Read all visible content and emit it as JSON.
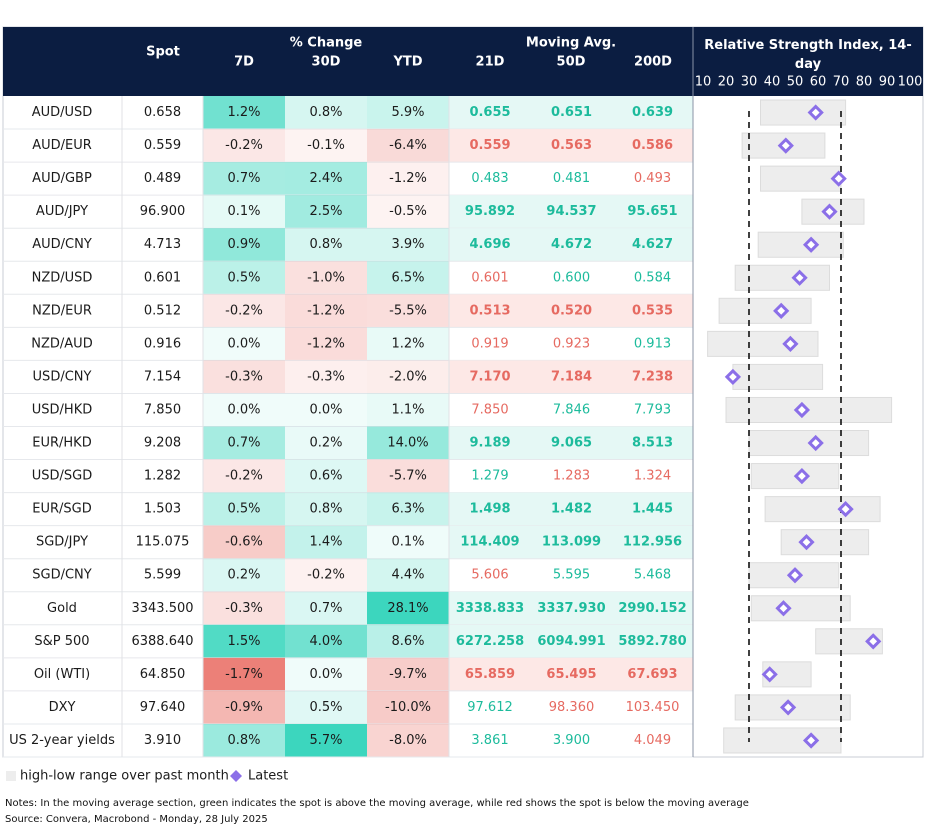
{
  "header": {
    "spot": "Spot",
    "pct_change": "% Change",
    "d7": "7D",
    "d30": "30D",
    "ytd": "YTD",
    "moving_avg": "Moving Avg.",
    "ma21": "21D",
    "ma50": "50D",
    "ma200": "200D",
    "rsi_title": "Relative Strength Index, 14-day"
  },
  "rsi": {
    "xlim": [
      10,
      100
    ],
    "xticks": [
      10,
      20,
      30,
      40,
      50,
      60,
      70,
      80,
      90,
      100
    ],
    "reference_lines": [
      30,
      70
    ],
    "range_color": "#ededed",
    "latest_color": "#8b6fe8"
  },
  "rows": [
    {
      "name": "AUD/USD",
      "spot": "0.658",
      "d7": "1.2%",
      "d30": "0.8%",
      "ytd": "5.9%",
      "ma21": "0.655",
      "ma50": "0.651",
      "ma200": "0.639",
      "rsi_low": 35,
      "rsi_high": 72,
      "rsi_latest": 59
    },
    {
      "name": "AUD/EUR",
      "spot": "0.559",
      "d7": "-0.2%",
      "d30": "-0.1%",
      "ytd": "-6.4%",
      "ma21": "0.559",
      "ma50": "0.563",
      "ma200": "0.586",
      "rsi_low": 27,
      "rsi_high": 63,
      "rsi_latest": 46
    },
    {
      "name": "AUD/GBP",
      "spot": "0.489",
      "d7": "0.7%",
      "d30": "2.4%",
      "ytd": "-1.2%",
      "ma21": "0.483",
      "ma50": "0.481",
      "ma200": "0.493",
      "rsi_low": 35,
      "rsi_high": 70,
      "rsi_latest": 69
    },
    {
      "name": "AUD/JPY",
      "spot": "96.900",
      "d7": "0.1%",
      "d30": "2.5%",
      "ytd": "-0.5%",
      "ma21": "95.892",
      "ma50": "94.537",
      "ma200": "95.651",
      "rsi_low": 53,
      "rsi_high": 80,
      "rsi_latest": 65
    },
    {
      "name": "AUD/CNY",
      "spot": "4.713",
      "d7": "0.9%",
      "d30": "0.8%",
      "ytd": "3.9%",
      "ma21": "4.696",
      "ma50": "4.672",
      "ma200": "4.627",
      "rsi_low": 34,
      "rsi_high": 71,
      "rsi_latest": 57
    },
    {
      "name": "NZD/USD",
      "spot": "0.601",
      "d7": "0.5%",
      "d30": "-1.0%",
      "ytd": "6.5%",
      "ma21": "0.601",
      "ma50": "0.600",
      "ma200": "0.584",
      "rsi_low": 24,
      "rsi_high": 65,
      "rsi_latest": 52
    },
    {
      "name": "NZD/EUR",
      "spot": "0.512",
      "d7": "-0.2%",
      "d30": "-1.2%",
      "ytd": "-5.5%",
      "ma21": "0.513",
      "ma50": "0.520",
      "ma200": "0.535",
      "rsi_low": 17,
      "rsi_high": 57,
      "rsi_latest": 44
    },
    {
      "name": "NZD/AUD",
      "spot": "0.916",
      "d7": "0.0%",
      "d30": "-1.2%",
      "ytd": "1.2%",
      "ma21": "0.919",
      "ma50": "0.923",
      "ma200": "0.913",
      "rsi_low": 12,
      "rsi_high": 60,
      "rsi_latest": 48
    },
    {
      "name": "USD/CNY",
      "spot": "7.154",
      "d7": "-0.3%",
      "d30": "-0.3%",
      "ytd": "-2.0%",
      "ma21": "7.170",
      "ma50": "7.184",
      "ma200": "7.238",
      "rsi_low": 23,
      "rsi_high": 62,
      "rsi_latest": 23
    },
    {
      "name": "USD/HKD",
      "spot": "7.850",
      "d7": "0.0%",
      "d30": "0.0%",
      "ytd": "1.1%",
      "ma21": "7.850",
      "ma50": "7.846",
      "ma200": "7.793",
      "rsi_low": 20,
      "rsi_high": 92,
      "rsi_latest": 53
    },
    {
      "name": "EUR/HKD",
      "spot": "9.208",
      "d7": "0.7%",
      "d30": "0.2%",
      "ytd": "14.0%",
      "ma21": "9.189",
      "ma50": "9.065",
      "ma200": "8.513",
      "rsi_low": 30,
      "rsi_high": 82,
      "rsi_latest": 59
    },
    {
      "name": "USD/SGD",
      "spot": "1.282",
      "d7": "-0.2%",
      "d30": "0.6%",
      "ytd": "-5.7%",
      "ma21": "1.279",
      "ma50": "1.283",
      "ma200": "1.324",
      "rsi_low": 31,
      "rsi_high": 69,
      "rsi_latest": 53
    },
    {
      "name": "EUR/SGD",
      "spot": "1.503",
      "d7": "0.5%",
      "d30": "0.8%",
      "ytd": "6.3%",
      "ma21": "1.498",
      "ma50": "1.482",
      "ma200": "1.445",
      "rsi_low": 37,
      "rsi_high": 87,
      "rsi_latest": 72
    },
    {
      "name": "SGD/JPY",
      "spot": "115.075",
      "d7": "-0.6%",
      "d30": "1.4%",
      "ytd": "0.1%",
      "ma21": "114.409",
      "ma50": "113.099",
      "ma200": "112.956",
      "rsi_low": 44,
      "rsi_high": 82,
      "rsi_latest": 55
    },
    {
      "name": "SGD/CNY",
      "spot": "5.599",
      "d7": "0.2%",
      "d30": "-0.2%",
      "ytd": "4.4%",
      "ma21": "5.606",
      "ma50": "5.595",
      "ma200": "5.468",
      "rsi_low": 30,
      "rsi_high": 69,
      "rsi_latest": 50
    },
    {
      "name": "Gold",
      "spot": "3343.500",
      "d7": "-0.3%",
      "d30": "0.7%",
      "ytd": "28.1%",
      "ma21": "3338.833",
      "ma50": "3337.930",
      "ma200": "2990.152",
      "rsi_low": 31,
      "rsi_high": 74,
      "rsi_latest": 45
    },
    {
      "name": "S&P 500",
      "spot": "6388.640",
      "d7": "1.5%",
      "d30": "4.0%",
      "ytd": "8.6%",
      "ma21": "6272.258",
      "ma50": "6094.991",
      "ma200": "5892.780",
      "rsi_low": 59,
      "rsi_high": 88,
      "rsi_latest": 84
    },
    {
      "name": "Oil (WTI)",
      "spot": "64.850",
      "d7": "-1.7%",
      "d30": "0.0%",
      "ytd": "-9.7%",
      "ma21": "65.859",
      "ma50": "65.495",
      "ma200": "67.693",
      "rsi_low": 36,
      "rsi_high": 57,
      "rsi_latest": 39
    },
    {
      "name": "DXY",
      "spot": "97.640",
      "d7": "-0.9%",
      "d30": "0.5%",
      "ytd": "-10.0%",
      "ma21": "97.612",
      "ma50": "98.360",
      "ma200": "103.450",
      "rsi_low": 24,
      "rsi_high": 74,
      "rsi_latest": 47
    },
    {
      "name": "US 2-year yields",
      "spot": "3.910",
      "d7": "0.8%",
      "d30": "5.7%",
      "ytd": "-8.0%",
      "ma21": "3.861",
      "ma50": "3.900",
      "ma200": "4.049",
      "rsi_low": 19,
      "rsi_high": 70,
      "rsi_latest": 57
    }
  ],
  "legend": {
    "range": "high-low range over past month",
    "latest": "Latest"
  },
  "notes": "Notes: In the moving average section, green indicates the spot is above the moving average, while red shows the spot is below the moving average",
  "source": "Source: Convera, Macrobond - Monday, 28 July 2025"
}
